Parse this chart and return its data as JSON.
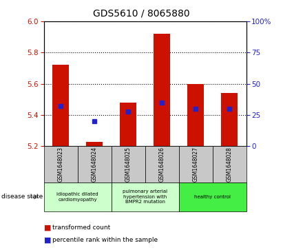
{
  "title": "GDS5610 / 8065880",
  "samples": [
    "GSM1648023",
    "GSM1648024",
    "GSM1648025",
    "GSM1648026",
    "GSM1648027",
    "GSM1648028"
  ],
  "transformed_count": [
    5.72,
    5.23,
    5.48,
    5.92,
    5.6,
    5.54
  ],
  "percentile_rank": [
    32,
    20,
    28,
    35,
    30,
    30
  ],
  "ylim_left": [
    5.2,
    6.0
  ],
  "ylim_right": [
    0,
    100
  ],
  "yticks_left": [
    5.2,
    5.4,
    5.6,
    5.8,
    6.0
  ],
  "yticks_right": [
    0,
    25,
    50,
    75,
    100
  ],
  "bar_color": "#cc1100",
  "dot_color": "#2222cc",
  "plot_bg_color": "#ffffff",
  "group_info": [
    {
      "span": [
        0,
        1
      ],
      "label": "idiopathic dilated\ncardiomyopathy",
      "color": "#ccffcc"
    },
    {
      "span": [
        2,
        3
      ],
      "label": "pulmonary arterial\nhypertension with\nBMPR2 mutation",
      "color": "#ccffcc"
    },
    {
      "span": [
        4,
        5
      ],
      "label": "healthy control",
      "color": "#44ee44"
    }
  ],
  "disease_state_label": "disease state",
  "legend_red": "transformed count",
  "legend_blue": "percentile rank within the sample",
  "ybase": 5.2,
  "bar_width": 0.5
}
